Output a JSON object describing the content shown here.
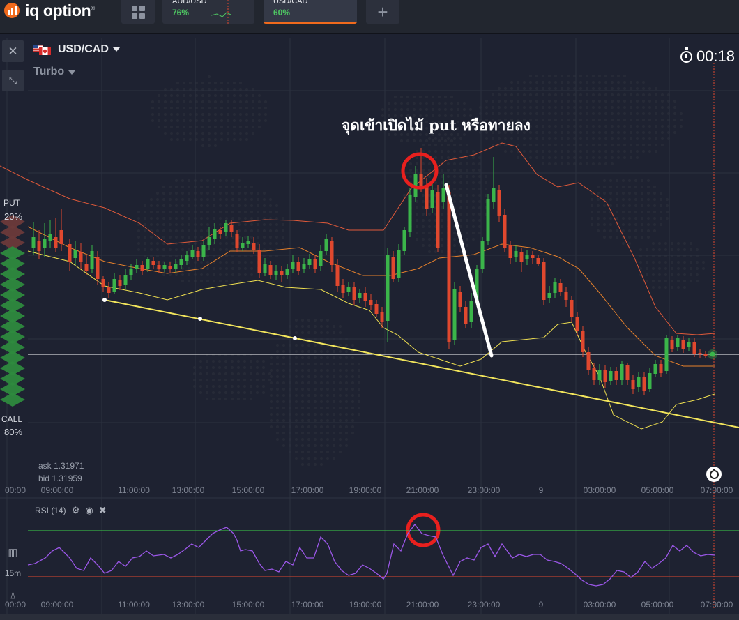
{
  "app": {
    "logo_text": "iq option",
    "logo_reg": "®"
  },
  "tabs": [
    {
      "name": "AUD/USD",
      "percent": "76%"
    },
    {
      "name": "USD/CAD",
      "percent": "60%"
    }
  ],
  "asset": {
    "pair": "USD/CAD",
    "mode": "Turbo"
  },
  "timer": "00:18",
  "put": {
    "label": "PUT",
    "value": "20%"
  },
  "call": {
    "label": "CALL",
    "value": "80%"
  },
  "quote": {
    "ask": "ask 1.31971",
    "bid": "bid 1.31959"
  },
  "annotation": "จุดเข้าเปิดไม้ put หรือทายลง",
  "time_axis": [
    "09:00:00",
    "11:00:00",
    "13:00:00",
    "15:00:00",
    "17:00:00",
    "19:00:00",
    "21:00:00",
    "23:00:00",
    "9",
    "03:00:00",
    "05:00:00",
    "07:00:00"
  ],
  "time_axis_partial": "00:00",
  "rsi": {
    "label": "RSI (14)"
  },
  "tools": {
    "interval": "15m"
  },
  "colors": {
    "up": "#3bb54a",
    "down": "#e0482e",
    "bb_upper": "#e05a3a",
    "bb_mid": "#e8822c",
    "bb_lower": "#f0e050",
    "trend": "#f2e55c",
    "rsi": "#9b57e8",
    "rsi_high": "#3cd449",
    "rsi_low": "#e0482e",
    "accent": "#f06a1d",
    "marker": "#e8201e"
  }
}
